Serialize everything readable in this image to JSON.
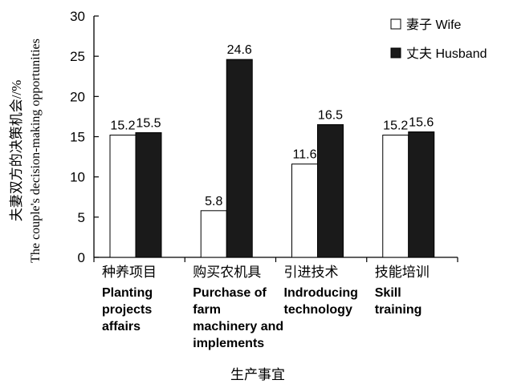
{
  "chart_data": {
    "type": "bar",
    "ylabel_cn": "夫妻双方的决策机会//%",
    "ylabel_en": "The couple's decision-making opportunities",
    "xlabel": "生产事宜",
    "ylim": [
      0,
      30
    ],
    "yticks": [
      0,
      5,
      10,
      15,
      20,
      25,
      30
    ],
    "grid": false,
    "legend_position": "top-right",
    "categories": [
      {
        "cn": "种养项目",
        "en": [
          "Planting",
          "projects",
          "affairs"
        ]
      },
      {
        "cn": "购买农机具",
        "en": [
          "Purchase of",
          "farm",
          "machinery and",
          "implements"
        ]
      },
      {
        "cn": "引进技术",
        "en": [
          "Indroducing",
          "technology"
        ]
      },
      {
        "cn": "技能培训",
        "en": [
          "Skill",
          "training"
        ]
      }
    ],
    "series": [
      {
        "name": "妻子 Wife",
        "fill": "#ffffff",
        "values": [
          15.2,
          5.8,
          11.6,
          15.2
        ]
      },
      {
        "name": "丈夫 Husband",
        "fill": "#1a1a1a",
        "values": [
          15.5,
          24.6,
          16.5,
          15.6
        ]
      }
    ]
  }
}
